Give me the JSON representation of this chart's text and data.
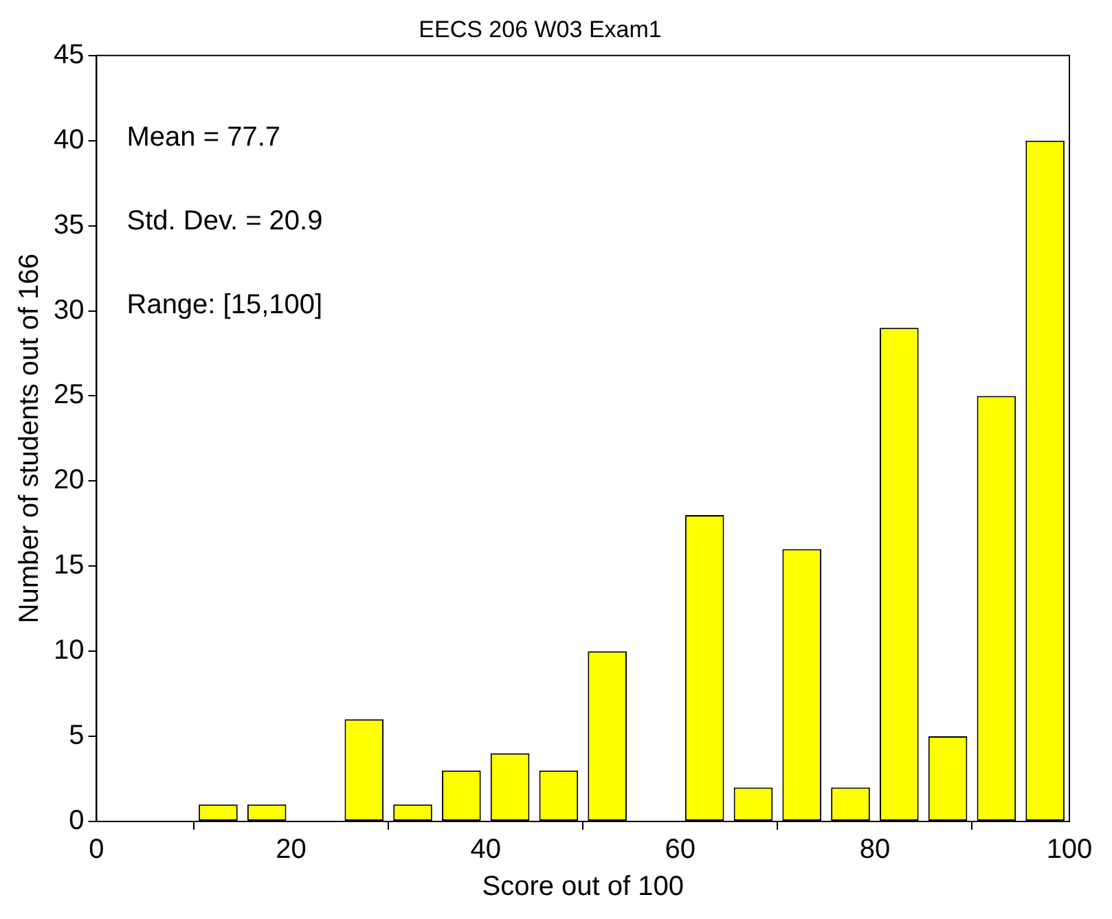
{
  "chart_data": {
    "type": "histogram",
    "title": "EECS 206 W03 Exam1",
    "xlabel": "Score out of 100",
    "ylabel": "Number of students out of 166",
    "bins": [
      0,
      5,
      10,
      15,
      20,
      25,
      30,
      35,
      40,
      45,
      50,
      55,
      60,
      65,
      70,
      75,
      80,
      85,
      90,
      95,
      100
    ],
    "values": [
      0,
      0,
      1,
      1,
      0,
      6,
      1,
      3,
      4,
      3,
      10,
      0,
      18,
      2,
      16,
      2,
      29,
      5,
      25,
      40
    ],
    "color": "#ffff00",
    "xlim": [
      0,
      100
    ],
    "xticks": [
      0,
      20,
      40,
      60,
      80,
      100
    ],
    "ylim": [
      0,
      45
    ],
    "yticks": [
      0,
      5,
      10,
      15,
      20,
      25,
      30,
      35,
      40,
      45
    ],
    "annotations": [
      "Mean = 77.7",
      "Std. Dev. = 20.9",
      "Range: [15,100]"
    ],
    "grid": false,
    "legend": false
  }
}
